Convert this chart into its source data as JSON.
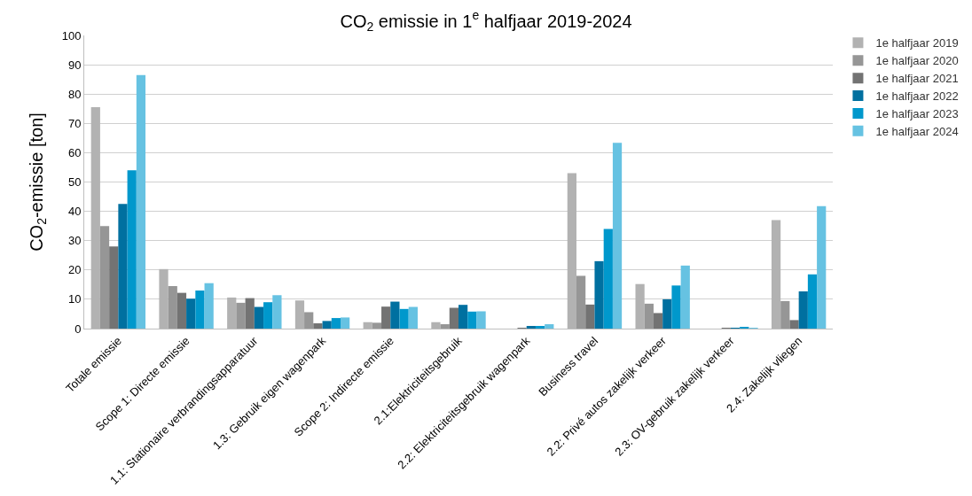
{
  "chart_data": {
    "type": "bar",
    "title": "CO$_{2}$ emissie in 1$^{e}$ halfjaar 2019-2024",
    "ylabel": "CO$_{2}$-emissie [ton]",
    "categories": [
      "Totale emissie",
      "Scope 1: Directe emissie",
      "1.1: Stationaire verbrandingsapparatuur",
      "1.3: Gebruik eigen wagenpark",
      "Scope 2: Indirecte emissie",
      "2.1:Elektriciteitsgebruik",
      "2.2: Elektriciteitsgebruik wagenpark",
      "Business travel",
      "2.2: Privé autos zakelijk verkeer",
      "2.3: OV-gebruik zakelijk verkeer",
      "2.4: Zakelijk vliegen"
    ],
    "series": [
      {
        "name": "1e halfjaar 2019",
        "color": "#b2b2b2",
        "values": [
          75.5,
          20.3,
          10.6,
          9.6,
          2.2,
          2.2,
          null,
          53,
          15.2,
          null,
          37
        ]
      },
      {
        "name": "1e halfjaar 2020",
        "color": "#969696",
        "values": [
          35,
          14.5,
          8.8,
          5.6,
          2,
          1.5,
          null,
          18,
          8.5,
          null,
          9.4
        ]
      },
      {
        "name": "1e halfjaar 2021",
        "color": "#737373",
        "values": [
          28,
          12.2,
          10.4,
          1.8,
          7.5,
          7.1,
          0.3,
          8.2,
          5.3,
          0.1,
          2.9
        ]
      },
      {
        "name": "1e halfjaar 2022",
        "color": "#0070a0",
        "values": [
          42.5,
          10.2,
          7.4,
          2.6,
          9.2,
          8.1,
          0.9,
          23,
          10,
          0.3,
          12.7
        ]
      },
      {
        "name": "1e halfjaar 2023",
        "color": "#0098cc",
        "values": [
          54,
          13,
          9,
          3.6,
          6.7,
          5.8,
          0.9,
          34,
          14.7,
          0.5,
          18.5
        ]
      },
      {
        "name": "1e halfjaar 2024",
        "color": "#66c2e2",
        "values": [
          86.5,
          15.5,
          11.4,
          3.8,
          7.4,
          5.9,
          1.5,
          63.4,
          21.5,
          0.3,
          41.8
        ]
      }
    ],
    "ylim": [
      0,
      100
    ],
    "yticks": [
      0,
      10,
      20,
      30,
      40,
      50,
      60,
      70,
      80,
      90,
      100
    ],
    "grid": "y",
    "legend": "right"
  }
}
